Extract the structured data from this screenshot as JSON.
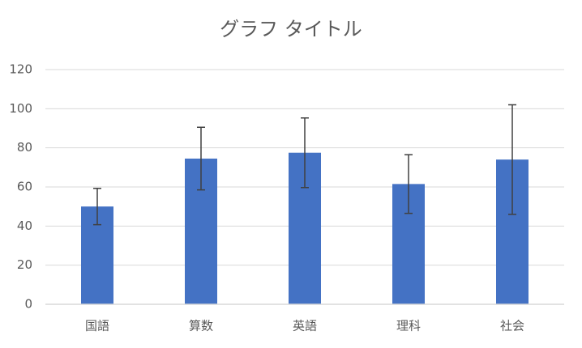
{
  "chart_data": {
    "type": "bar",
    "title": "グラフ タイトル",
    "categories": [
      "国語",
      "算数",
      "英語",
      "理科",
      "社会"
    ],
    "values": [
      50,
      74.5,
      77.5,
      61.5,
      74
    ],
    "errors": [
      9.3,
      16,
      17.8,
      15,
      28
    ],
    "color": "#4472c4",
    "ylim": [
      0,
      120
    ],
    "yticks": [
      0,
      20,
      40,
      60,
      80,
      100,
      120
    ],
    "grid": true
  }
}
